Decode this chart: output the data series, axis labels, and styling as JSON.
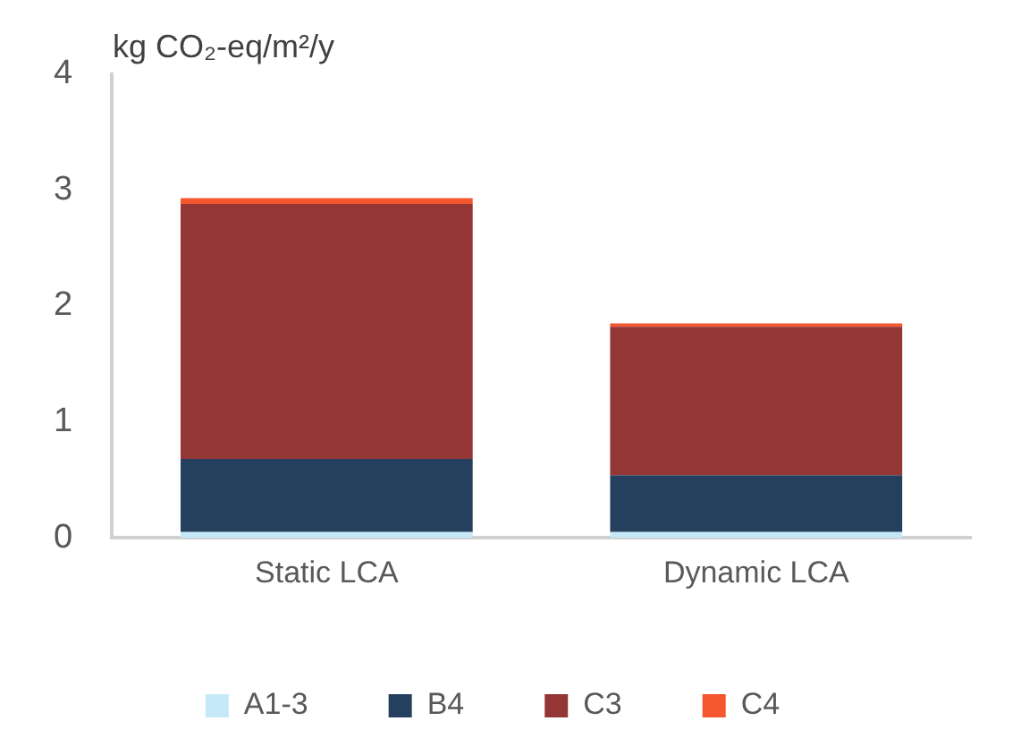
{
  "chart_data": {
    "type": "bar",
    "ylabel": "kg CO₂-eq/m²/y",
    "categories": [
      "Static LCA",
      "Dynamic LCA"
    ],
    "stacked": true,
    "ylim": [
      0,
      4
    ],
    "yticks": [
      0,
      1,
      2,
      3,
      4
    ],
    "grid": false,
    "legend": "bottom",
    "series": [
      {
        "name": "A1-3",
        "color": "#c5e9f8",
        "values": [
          0.05,
          0.05
        ]
      },
      {
        "name": "B4",
        "color": "#253f5f",
        "values": [
          0.63,
          0.49
        ]
      },
      {
        "name": "C3",
        "color": "#943635",
        "values": [
          2.2,
          1.28
        ]
      },
      {
        "name": "C4",
        "color": "#f4562e",
        "values": [
          0.05,
          0.03
        ]
      }
    ]
  }
}
